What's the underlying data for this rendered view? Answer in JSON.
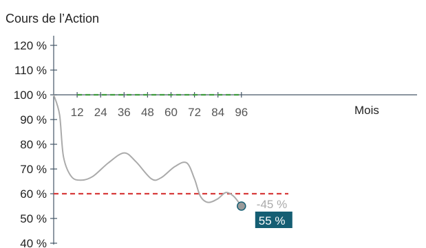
{
  "chart_data": {
    "type": "line",
    "title": "Cours de l’Action",
    "xlabel": "Mois",
    "ylabel": "",
    "x_ticks": [
      12,
      24,
      36,
      48,
      60,
      72,
      84,
      96
    ],
    "y_ticks": [
      "120 %",
      "110 %",
      "100 %",
      "90 %",
      "80 %",
      "70 %",
      "60 %",
      "50 %",
      "40 %"
    ],
    "y_tick_values": [
      120,
      110,
      100,
      90,
      80,
      70,
      60,
      50,
      40
    ],
    "ylim": [
      40,
      120
    ],
    "xlim": [
      0,
      96
    ],
    "series": [
      {
        "color": "#aaaaaa",
        "x": [
          0,
          3,
          5,
          9,
          14,
          20,
          28,
          36,
          42,
          50,
          55,
          62,
          68,
          72,
          75,
          79,
          84,
          88,
          92,
          96
        ],
        "y": [
          100,
          92,
          75,
          67,
          65.5,
          67,
          72.5,
          76.5,
          73,
          66,
          66.5,
          71,
          72.5,
          66,
          59,
          56.5,
          58,
          60.5,
          59,
          55
        ]
      }
    ],
    "reference_lines": [
      {
        "y": 100,
        "x_from": 12,
        "x_to": 96,
        "color": "#3c9a3c",
        "style": "dashed"
      },
      {
        "y": 60,
        "x_from": 0,
        "x_to": 120,
        "color": "#d63a3a",
        "style": "dashed"
      }
    ],
    "highlight_ticks": [
      {
        "value": 100,
        "color": "#3c9a3c"
      },
      {
        "value": 60,
        "color": "#c82828"
      }
    ],
    "end_point": {
      "x": 96,
      "y": 55,
      "change_label": "-45 %",
      "value_label": "55 %",
      "badge_color": "#155e73"
    },
    "grid": false
  }
}
